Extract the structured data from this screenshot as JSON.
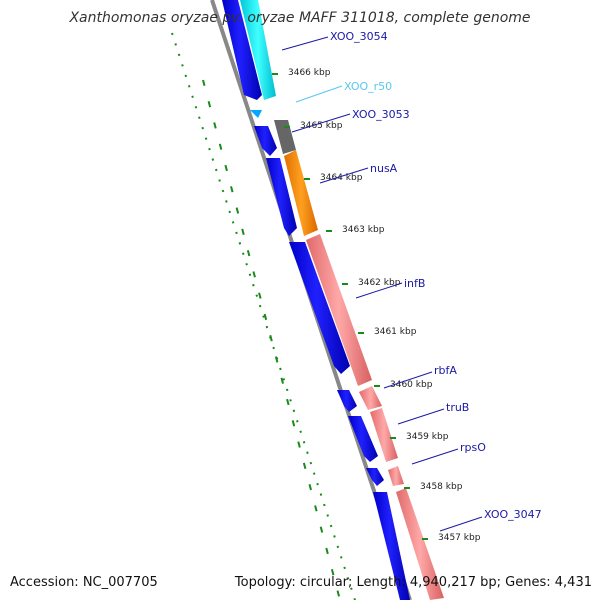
{
  "title": "Xanthomonas oryzae pv. oryzae MAFF 311018, complete genome",
  "footer": {
    "accession": "Accession: NC_007705",
    "summary": "Topology: circular; Length: 4,940,217 bp; Genes: 4,431"
  },
  "ticks": [
    "3466 kbp",
    "3465 kbp",
    "3464 kbp",
    "3463 kbp",
    "3462 kbp",
    "3461 kbp",
    "3460 kbp",
    "3459 kbp",
    "3458 kbp",
    "3457 kbp"
  ],
  "gene_labels": [
    {
      "name": "XOO_3054",
      "color": "#1a1aa6"
    },
    {
      "name": "XOO_r50",
      "color": "#56c8ee"
    },
    {
      "name": "XOO_3053",
      "color": "#1a1aa6"
    },
    {
      "name": "nusA",
      "color": "#1a1aa6"
    },
    {
      "name": "infB",
      "color": "#1a1aa6"
    },
    {
      "name": "rbfA",
      "color": "#1a1aa6"
    },
    {
      "name": "truB",
      "color": "#1a1aa6"
    },
    {
      "name": "rpsO",
      "color": "#1a1aa6"
    },
    {
      "name": "XOO_3047",
      "color": "#1a1aa6"
    }
  ],
  "colors": {
    "cds_blue": "#0000ee",
    "rrna_cyan": "#00e8e8",
    "gray_feature": "#666666",
    "orange_feature": "#ff8c00",
    "salmon_feature": "#f08080",
    "backbone": "#888888",
    "gc_dots": "#1a8a1a"
  }
}
